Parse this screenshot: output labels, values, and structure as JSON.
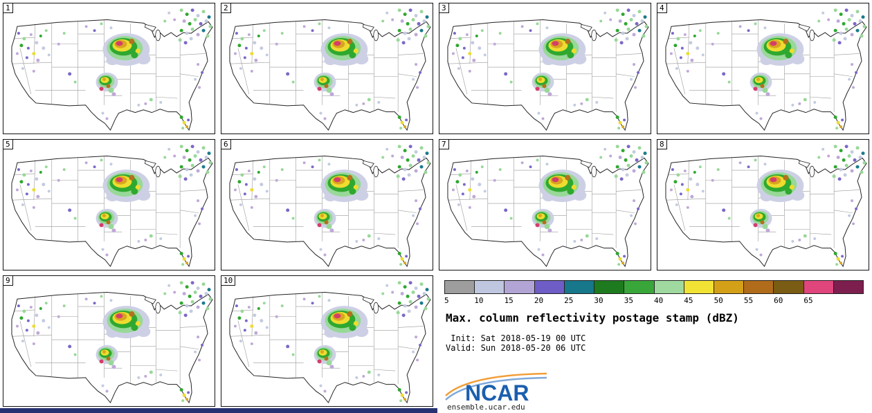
{
  "panels": [
    {
      "label": "1"
    },
    {
      "label": "2"
    },
    {
      "label": "3"
    },
    {
      "label": "4"
    },
    {
      "label": "5"
    },
    {
      "label": "6"
    },
    {
      "label": "7"
    },
    {
      "label": "8"
    },
    {
      "label": "9"
    },
    {
      "label": "10"
    }
  ],
  "legend": {
    "colorbar": {
      "ticks": [
        "5",
        "10",
        "15",
        "20",
        "25",
        "30",
        "35",
        "40",
        "45",
        "50",
        "55",
        "60",
        "65"
      ],
      "colors": [
        "#9E9E9E",
        "#BFC7E0",
        "#B2A4D4",
        "#6E5DC6",
        "#17778B",
        "#1E7A1E",
        "#39A639",
        "#A0D9A0",
        "#F2E234",
        "#D4A017",
        "#B06C1A",
        "#7A5C14",
        "#E0457C",
        "#7C1F4E"
      ]
    },
    "title": "Max. column reflectivity postage stamp (dBZ)",
    "init_line": " Init: Sat 2018-05-19 00 UTC",
    "valid_line": "Valid: Sun 2018-05-20 06 UTC",
    "logo_text": "NCAR",
    "site": "ensemble.ucar.edu"
  },
  "colors": {
    "logo_blue": "#1B5FAF",
    "logo_swoosh_orange": "#F29E38",
    "logo_swoosh_blue": "#7FA8D9",
    "footer_navy": "#263271"
  }
}
